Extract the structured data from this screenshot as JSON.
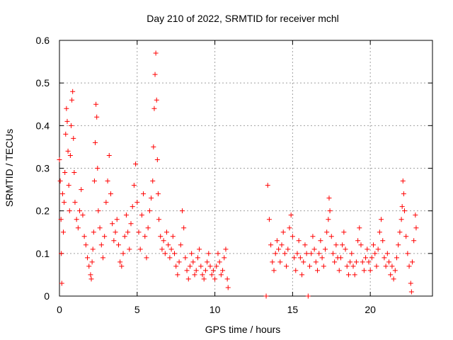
{
  "chart_data": {
    "type": "scatter",
    "title": "Day 210 of 2022, SRMTID for receiver mchl",
    "xlabel": "GPS time / hours",
    "ylabel": "SRMTID / TECUs",
    "xlim": [
      0,
      24
    ],
    "ylim": [
      0,
      0.6
    ],
    "xticks": [
      0,
      5,
      10,
      15,
      20
    ],
    "yticks": [
      0,
      0.1,
      0.2,
      0.3,
      0.4,
      0.5,
      0.6
    ],
    "xtick_labels": [
      "0",
      "5",
      "10",
      "15",
      "20"
    ],
    "ytick_labels": [
      "0",
      "0.1",
      "0.2",
      "0.3",
      "0.4",
      "0.5",
      "0.6"
    ],
    "grid": true,
    "marker": "plus",
    "color": "#ff0000",
    "series": [
      {
        "name": "SRMTID",
        "points": [
          [
            0.0,
            0.32
          ],
          [
            0.05,
            0.27
          ],
          [
            0.1,
            0.18
          ],
          [
            0.12,
            0.1
          ],
          [
            0.15,
            0.03
          ],
          [
            0.2,
            0.24
          ],
          [
            0.25,
            0.15
          ],
          [
            0.3,
            0.22
          ],
          [
            0.35,
            0.29
          ],
          [
            0.4,
            0.38
          ],
          [
            0.45,
            0.44
          ],
          [
            0.5,
            0.41
          ],
          [
            0.55,
            0.34
          ],
          [
            0.6,
            0.26
          ],
          [
            0.65,
            0.2
          ],
          [
            0.7,
            0.33
          ],
          [
            0.75,
            0.4
          ],
          [
            0.8,
            0.46
          ],
          [
            0.85,
            0.48
          ],
          [
            0.9,
            0.37
          ],
          [
            0.95,
            0.29
          ],
          [
            1.0,
            0.22
          ],
          [
            1.1,
            0.18
          ],
          [
            1.2,
            0.16
          ],
          [
            1.3,
            0.2
          ],
          [
            1.4,
            0.25
          ],
          [
            1.5,
            0.19
          ],
          [
            1.6,
            0.14
          ],
          [
            1.7,
            0.12
          ],
          [
            1.8,
            0.09
          ],
          [
            1.9,
            0.07
          ],
          [
            2.0,
            0.05
          ],
          [
            2.05,
            0.04
          ],
          [
            2.1,
            0.08
          ],
          [
            2.15,
            0.11
          ],
          [
            2.2,
            0.15
          ],
          [
            2.25,
            0.27
          ],
          [
            2.3,
            0.36
          ],
          [
            2.35,
            0.45
          ],
          [
            2.4,
            0.42
          ],
          [
            2.45,
            0.3
          ],
          [
            2.5,
            0.2
          ],
          [
            2.6,
            0.16
          ],
          [
            2.7,
            0.12
          ],
          [
            2.8,
            0.09
          ],
          [
            2.9,
            0.14
          ],
          [
            3.0,
            0.22
          ],
          [
            3.1,
            0.27
          ],
          [
            3.2,
            0.33
          ],
          [
            3.3,
            0.24
          ],
          [
            3.4,
            0.17
          ],
          [
            3.5,
            0.13
          ],
          [
            3.6,
            0.15
          ],
          [
            3.7,
            0.18
          ],
          [
            3.8,
            0.12
          ],
          [
            3.9,
            0.08
          ],
          [
            4.0,
            0.07
          ],
          [
            4.1,
            0.1
          ],
          [
            4.2,
            0.14
          ],
          [
            4.3,
            0.19
          ],
          [
            4.4,
            0.15
          ],
          [
            4.5,
            0.11
          ],
          [
            4.6,
            0.17
          ],
          [
            4.7,
            0.21
          ],
          [
            4.8,
            0.26
          ],
          [
            4.9,
            0.31
          ],
          [
            5.0,
            0.22
          ],
          [
            5.1,
            0.15
          ],
          [
            5.2,
            0.11
          ],
          [
            5.3,
            0.19
          ],
          [
            5.4,
            0.24
          ],
          [
            5.5,
            0.14
          ],
          [
            5.6,
            0.09
          ],
          [
            5.7,
            0.16
          ],
          [
            5.8,
            0.2
          ],
          [
            5.9,
            0.23
          ],
          [
            6.0,
            0.27
          ],
          [
            6.05,
            0.35
          ],
          [
            6.1,
            0.44
          ],
          [
            6.15,
            0.52
          ],
          [
            6.2,
            0.57
          ],
          [
            6.25,
            0.46
          ],
          [
            6.3,
            0.32
          ],
          [
            6.35,
            0.24
          ],
          [
            6.4,
            0.18
          ],
          [
            6.5,
            0.14
          ],
          [
            6.6,
            0.11
          ],
          [
            6.7,
            0.13
          ],
          [
            6.8,
            0.1
          ],
          [
            6.9,
            0.15
          ],
          [
            7.0,
            0.12
          ],
          [
            7.1,
            0.09
          ],
          [
            7.2,
            0.11
          ],
          [
            7.3,
            0.14
          ],
          [
            7.4,
            0.1
          ],
          [
            7.5,
            0.07
          ],
          [
            7.6,
            0.05
          ],
          [
            7.7,
            0.08
          ],
          [
            7.8,
            0.12
          ],
          [
            7.9,
            0.2
          ],
          [
            8.0,
            0.16
          ],
          [
            8.1,
            0.09
          ],
          [
            8.2,
            0.06
          ],
          [
            8.3,
            0.04
          ],
          [
            8.4,
            0.07
          ],
          [
            8.5,
            0.1
          ],
          [
            8.6,
            0.08
          ],
          [
            8.7,
            0.05
          ],
          [
            8.8,
            0.06
          ],
          [
            8.9,
            0.09
          ],
          [
            9.0,
            0.11
          ],
          [
            9.1,
            0.07
          ],
          [
            9.2,
            0.05
          ],
          [
            9.3,
            0.04
          ],
          [
            9.4,
            0.06
          ],
          [
            9.5,
            0.08
          ],
          [
            9.6,
            0.1
          ],
          [
            9.7,
            0.07
          ],
          [
            9.8,
            0.05
          ],
          [
            9.9,
            0.06
          ],
          [
            10.0,
            0.04
          ],
          [
            10.1,
            0.07
          ],
          [
            10.2,
            0.1
          ],
          [
            10.3,
            0.08
          ],
          [
            10.4,
            0.05
          ],
          [
            10.5,
            0.06
          ],
          [
            10.6,
            0.09
          ],
          [
            10.7,
            0.11
          ],
          [
            10.8,
            0.04
          ],
          [
            10.85,
            0.02
          ],
          [
            13.3,
            0.0
          ],
          [
            13.4,
            0.26
          ],
          [
            13.5,
            0.18
          ],
          [
            13.6,
            0.12
          ],
          [
            13.7,
            0.08
          ],
          [
            13.8,
            0.06
          ],
          [
            13.9,
            0.1
          ],
          [
            14.0,
            0.13
          ],
          [
            14.1,
            0.11
          ],
          [
            14.2,
            0.08
          ],
          [
            14.3,
            0.12
          ],
          [
            14.4,
            0.15
          ],
          [
            14.5,
            0.1
          ],
          [
            14.6,
            0.07
          ],
          [
            14.7,
            0.11
          ],
          [
            14.8,
            0.16
          ],
          [
            14.9,
            0.19
          ],
          [
            15.0,
            0.14
          ],
          [
            15.1,
            0.09
          ],
          [
            15.2,
            0.06
          ],
          [
            15.3,
            0.1
          ],
          [
            15.4,
            0.13
          ],
          [
            15.5,
            0.09
          ],
          [
            15.6,
            0.05
          ],
          [
            15.7,
            0.08
          ],
          [
            15.8,
            0.12
          ],
          [
            15.9,
            0.1
          ],
          [
            16.0,
            0.0
          ],
          [
            16.1,
            0.07
          ],
          [
            16.2,
            0.1
          ],
          [
            16.3,
            0.14
          ],
          [
            16.4,
            0.11
          ],
          [
            16.5,
            0.08
          ],
          [
            16.6,
            0.06
          ],
          [
            16.7,
            0.1
          ],
          [
            16.8,
            0.13
          ],
          [
            16.9,
            0.09
          ],
          [
            17.0,
            0.07
          ],
          [
            17.1,
            0.11
          ],
          [
            17.2,
            0.15
          ],
          [
            17.3,
            0.18
          ],
          [
            17.35,
            0.23
          ],
          [
            17.4,
            0.2
          ],
          [
            17.5,
            0.14
          ],
          [
            17.6,
            0.1
          ],
          [
            17.7,
            0.08
          ],
          [
            17.8,
            0.12
          ],
          [
            17.9,
            0.09
          ],
          [
            18.0,
            0.06
          ],
          [
            18.1,
            0.09
          ],
          [
            18.2,
            0.12
          ],
          [
            18.3,
            0.15
          ],
          [
            18.4,
            0.11
          ],
          [
            18.5,
            0.07
          ],
          [
            18.6,
            0.05
          ],
          [
            18.7,
            0.08
          ],
          [
            18.8,
            0.1
          ],
          [
            18.9,
            0.07
          ],
          [
            19.0,
            0.05
          ],
          [
            19.1,
            0.08
          ],
          [
            19.2,
            0.13
          ],
          [
            19.3,
            0.16
          ],
          [
            19.4,
            0.12
          ],
          [
            19.5,
            0.08
          ],
          [
            19.6,
            0.06
          ],
          [
            19.7,
            0.09
          ],
          [
            19.8,
            0.11
          ],
          [
            19.9,
            0.08
          ],
          [
            20.0,
            0.06
          ],
          [
            20.1,
            0.09
          ],
          [
            20.2,
            0.12
          ],
          [
            20.3,
            0.1
          ],
          [
            20.4,
            0.07
          ],
          [
            20.5,
            0.11
          ],
          [
            20.6,
            0.15
          ],
          [
            20.7,
            0.18
          ],
          [
            20.8,
            0.13
          ],
          [
            20.9,
            0.09
          ],
          [
            21.0,
            0.07
          ],
          [
            21.1,
            0.1
          ],
          [
            21.2,
            0.08
          ],
          [
            21.3,
            0.05
          ],
          [
            21.4,
            0.07
          ],
          [
            21.5,
            0.04
          ],
          [
            21.6,
            0.06
          ],
          [
            21.7,
            0.09
          ],
          [
            21.8,
            0.12
          ],
          [
            21.9,
            0.15
          ],
          [
            22.0,
            0.18
          ],
          [
            22.05,
            0.21
          ],
          [
            22.1,
            0.27
          ],
          [
            22.15,
            0.24
          ],
          [
            22.2,
            0.2
          ],
          [
            22.3,
            0.14
          ],
          [
            22.4,
            0.1
          ],
          [
            22.5,
            0.07
          ],
          [
            22.6,
            0.03
          ],
          [
            22.65,
            0.01
          ],
          [
            22.7,
            0.08
          ],
          [
            22.8,
            0.13
          ],
          [
            22.9,
            0.19
          ],
          [
            22.95,
            0.16
          ]
        ]
      }
    ]
  }
}
